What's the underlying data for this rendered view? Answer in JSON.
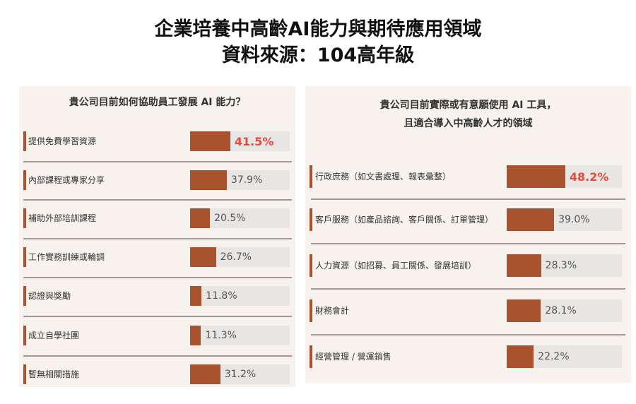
{
  "title": {
    "line1": "企業培養中高齡AI能力與期待應用領域",
    "line2": "資料來源：104高年級"
  },
  "chart_data": [
    {
      "type": "bar",
      "title": "貴公司目前如何協助員工發展 AI 能力？",
      "categories": [
        "提供免費學習資源",
        "內部課程或專家分享",
        "補助外部培訓課程",
        "工作實務訓練或輪調",
        "認證與獎勵",
        "成立自學社團",
        "暫無相關措施"
      ],
      "values": [
        41.5,
        37.9,
        20.5,
        26.7,
        11.8,
        11.3,
        31.2
      ],
      "labels": [
        "41.5%",
        "37.9%",
        "20.5%",
        "26.7%",
        "11.8%",
        "11.3%",
        "31.2%"
      ],
      "highlight_index": 0,
      "unit": "%"
    },
    {
      "type": "bar",
      "title": "貴公司目前實際或有意願使用 AI 工具，",
      "title_line2": "且適合導入中高齡人才的領域",
      "categories": [
        "行政庶務（如文書處理、報表彙整）",
        "客戶服務（如產品諮詢、客戶關係、訂單管理）",
        "人力資源（如招募、員工關係、發展培訓）",
        "財務會計",
        "經營管理 / 營運銷售"
      ],
      "values": [
        48.2,
        39.0,
        28.3,
        28.1,
        22.2
      ],
      "labels": [
        "48.2%",
        "39.0%",
        "28.3%",
        "28.1%",
        "22.2%"
      ],
      "highlight_index": 0,
      "unit": "%"
    }
  ],
  "colors": {
    "bar": "#a8532e",
    "highlight": "#e24a3e",
    "track": "#e8e6e4",
    "panel": "#f8f2ef"
  }
}
